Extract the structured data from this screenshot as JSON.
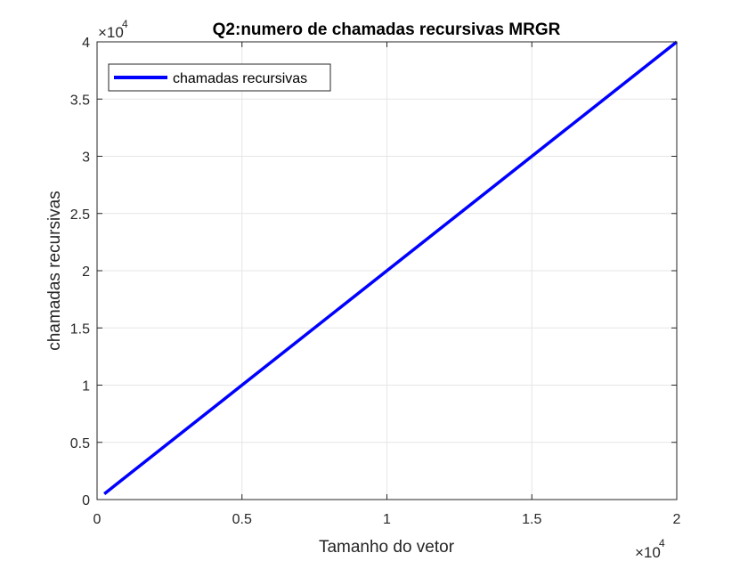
{
  "chart_data": {
    "type": "line",
    "title": "Q2:numero de chamadas recursivas MRGR",
    "xlabel": "Tamanho do vetor",
    "ylabel": "chamadas recursivas",
    "x_multiplier_label": "×10",
    "x_multiplier_exp": "4",
    "y_multiplier_label": "×10",
    "y_multiplier_exp": "4",
    "xlim": [
      0,
      20000
    ],
    "ylim": [
      0,
      40000
    ],
    "x_ticks": [
      0,
      5000,
      10000,
      15000,
      20000
    ],
    "x_tick_labels": [
      "0",
      "0.5",
      "1",
      "1.5",
      "2"
    ],
    "y_ticks": [
      0,
      5000,
      10000,
      15000,
      20000,
      25000,
      30000,
      35000,
      40000
    ],
    "y_tick_labels": [
      "0",
      "0.5",
      "1",
      "1.5",
      "2",
      "2.5",
      "3",
      "3.5",
      "4"
    ],
    "grid": true,
    "legend_position": "top-left",
    "series": [
      {
        "name": "chamadas recursivas",
        "color": "#0000ff",
        "x": [
          250,
          20000
        ],
        "y": [
          500,
          40000
        ]
      }
    ]
  }
}
